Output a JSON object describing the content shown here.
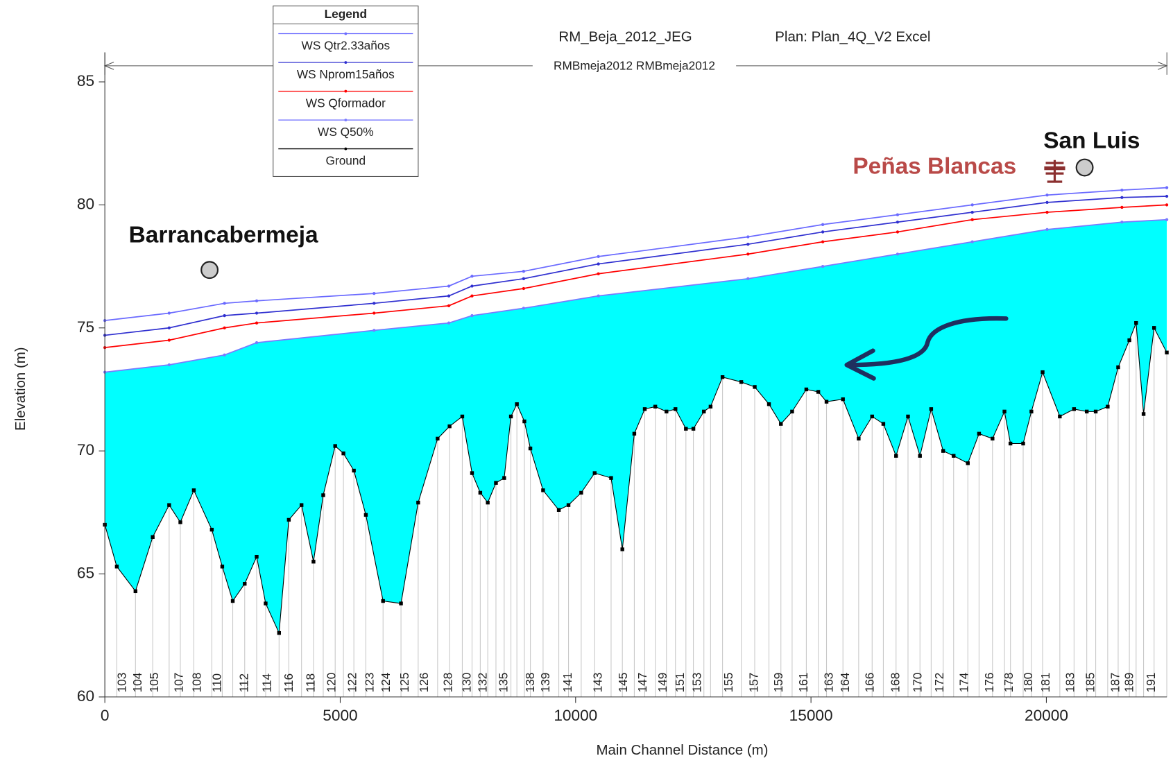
{
  "chart_data": {
    "type": "line",
    "title": "RM_Beja_2012_JEG",
    "plan": "Plan: Plan_4Q_V2 Excel",
    "subtitle": "RMBmeja2012 RMBmeja2012",
    "xlabel": "Main Channel Distance (m)",
    "ylabel": "Elevation (m)",
    "legend_title": "Legend",
    "xlim": [
      0,
      22560
    ],
    "ylim": [
      60,
      86.2
    ],
    "xticks": [
      0,
      5000,
      10000,
      15000,
      20000
    ],
    "yticks": [
      60,
      65,
      70,
      75,
      80,
      85
    ],
    "fill_color": "#00ffff",
    "annotations": [
      "Barrancabermeja",
      "San Luis",
      "Peñas Blancas"
    ],
    "ws_x": [
      0,
      1366,
      2542,
      3225,
      5719,
      7307,
      7800,
      8896,
      10484,
      13662,
      15250,
      16839,
      18427,
      20016,
      21605,
      22558
    ],
    "series": [
      {
        "name": "WS  Qtr2.33años",
        "color": "#6a6aff",
        "values": [
          75.3,
          75.6,
          76.0,
          76.1,
          76.4,
          76.7,
          77.1,
          77.3,
          77.9,
          78.7,
          79.2,
          79.6,
          80.0,
          80.4,
          80.6,
          80.7
        ]
      },
      {
        "name": "WS  Nprom15años",
        "color": "#3030d0",
        "values": [
          74.7,
          75.0,
          75.5,
          75.6,
          76.0,
          76.3,
          76.7,
          77.0,
          77.6,
          78.4,
          78.9,
          79.3,
          79.7,
          80.1,
          80.3,
          80.35
        ]
      },
      {
        "name": "WS  Qformador",
        "color": "#ff0000",
        "values": [
          74.2,
          74.5,
          75.0,
          75.2,
          75.6,
          75.9,
          76.3,
          76.6,
          77.2,
          78.0,
          78.5,
          78.9,
          79.4,
          79.7,
          79.9,
          80.0
        ]
      },
      {
        "name": "WS  Q50%",
        "color": "#7a7aff",
        "values": [
          73.2,
          73.5,
          73.9,
          74.4,
          74.9,
          75.2,
          75.5,
          75.8,
          76.3,
          77.0,
          77.5,
          78.0,
          78.5,
          79.0,
          79.3,
          79.4
        ]
      }
    ],
    "ground": {
      "name": "Ground",
      "color": "#000000",
      "x": [
        0,
        254,
        651,
        1017,
        1366,
        1604,
        1890,
        2272,
        2494,
        2717,
        2971,
        3225,
        3416,
        3701,
        3908,
        4178,
        4432,
        4639,
        4893,
        5068,
        5290,
        5544,
        5910,
        6291,
        6656,
        7069,
        7323,
        7593,
        7800,
        7975,
        8134,
        8308,
        8483,
        8626,
        8753,
        8912,
        9039,
        9309,
        9643,
        9849,
        10119,
        10405,
        10754,
        10993,
        11247,
        11469,
        11692,
        11930,
        12121,
        12343,
        12502,
        12725,
        12867,
        13121,
        13519,
        13805,
        14107,
        14361,
        14599,
        14901,
        15155,
        15330,
        15679,
        16013,
        16299,
        16537,
        16807,
        17061,
        17315,
        17553,
        17808,
        18030,
        18332,
        18570,
        18856,
        19110,
        19237,
        19507,
        19682,
        19920,
        20286,
        20588,
        20858,
        21048,
        21303,
        21525,
        21763,
        21906,
        22065,
        22288,
        22558
      ],
      "values": [
        67.0,
        65.3,
        64.3,
        66.5,
        67.8,
        67.1,
        68.4,
        66.8,
        65.3,
        63.9,
        64.6,
        65.7,
        63.8,
        62.6,
        67.2,
        67.8,
        65.5,
        68.2,
        70.2,
        69.9,
        69.2,
        67.4,
        63.9,
        63.8,
        67.9,
        70.5,
        71.0,
        71.4,
        69.1,
        68.3,
        67.9,
        68.7,
        68.9,
        71.4,
        71.9,
        71.2,
        70.1,
        68.4,
        67.6,
        67.8,
        68.3,
        69.1,
        68.9,
        66.0,
        70.7,
        71.7,
        71.8,
        71.6,
        71.7,
        70.9,
        70.9,
        71.6,
        71.8,
        73.0,
        72.8,
        72.6,
        71.9,
        71.1,
        71.6,
        72.5,
        72.4,
        72.0,
        72.1,
        70.5,
        71.4,
        71.1,
        69.8,
        71.4,
        69.8,
        71.7,
        70.0,
        69.8,
        69.5,
        70.7,
        70.5,
        71.6,
        70.3,
        70.3,
        71.6,
        73.2,
        71.4,
        71.7,
        71.6,
        71.6,
        71.8,
        73.4,
        74.5,
        75.2,
        71.5,
        75.0,
        74.0
      ]
    },
    "stations": {
      "labels": [
        "103",
        "104",
        "105",
        "107",
        "108",
        "110",
        "112",
        "114",
        "116",
        "118",
        "120",
        "122",
        "123",
        "124",
        "125",
        "126",
        "128",
        "130",
        "132",
        "135",
        "138",
        "139",
        "141",
        "143",
        "145",
        "147",
        "149",
        "151",
        "153",
        "155",
        "157",
        "159",
        "161",
        "163",
        "164",
        "166",
        "168",
        "170",
        "172",
        "174",
        "176",
        "178",
        "180",
        "181",
        "183",
        "185",
        "187",
        "189",
        "191"
      ],
      "x": [
        508,
        842,
        1191,
        1716,
        2097,
        2526,
        3098,
        3590,
        4051,
        4512,
        4956,
        5401,
        5767,
        6116,
        6513,
        6926,
        7435,
        7832,
        8166,
        8610,
        9182,
        9500,
        9977,
        10612,
        11152,
        11565,
        11994,
        12359,
        12725,
        13392,
        13932,
        14456,
        14981,
        15521,
        15870,
        16394,
        16934,
        17411,
        17872,
        18396,
        18936,
        19349,
        19762,
        20128,
        20652,
        21081,
        21605,
        21906,
        22367
      ]
    }
  }
}
